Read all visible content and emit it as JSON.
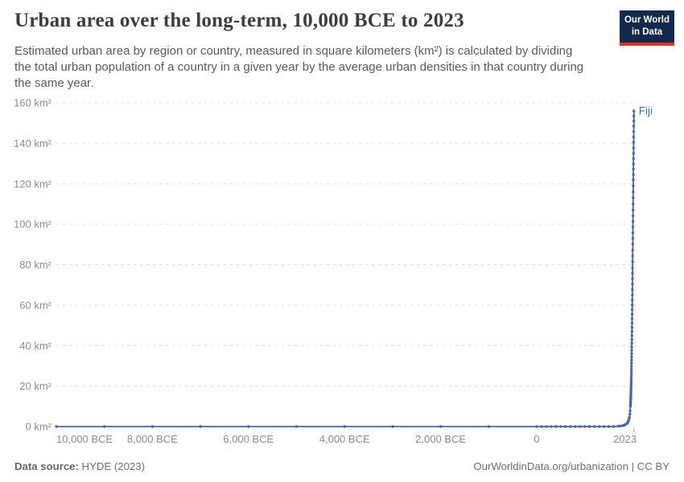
{
  "header": {
    "title": "Urban area over the long-term, 10,000 BCE to 2023",
    "subtitle": "Estimated urban area by region or country, measured in square kilometers (km²) is calculated by dividing the total urban population of a country in a given year by the average urban densities in that country during the same year.",
    "logo": {
      "line1": "Our World",
      "line2": "in Data"
    }
  },
  "footer": {
    "source_label": "Data source:",
    "source_value": " HYDE (2023)",
    "credit": "OurWorldinData.org/urbanization | CC BY"
  },
  "colors": {
    "series": "#4a66a2",
    "grid": "#dcdcdc",
    "tick_text": "#8c8c8c",
    "axis_tick": "#a0a0a0",
    "logo_bg": "#12294b",
    "logo_bar": "#dc352c"
  },
  "chart_data": {
    "type": "line",
    "title": "Urban area over the long-term, 10,000 BCE to 2023",
    "xlabel": "",
    "ylabel": "",
    "xlim": [
      -10000,
      2023
    ],
    "ylim": [
      0,
      160
    ],
    "grid": "dashed-horizontal",
    "legend_position": "end-of-line-label",
    "x_axis": {
      "ticks": [
        {
          "year": -10000,
          "label": "10,000 BCE"
        },
        {
          "year": -8000,
          "label": "8,000 BCE"
        },
        {
          "year": -6000,
          "label": "6,000 BCE"
        },
        {
          "year": -4000,
          "label": "4,000 BCE"
        },
        {
          "year": -2000,
          "label": "2,000 BCE"
        },
        {
          "year": 0,
          "label": "0"
        },
        {
          "year": 2023,
          "label": "2023"
        }
      ]
    },
    "y_axis": {
      "ticks": [
        {
          "value": 0,
          "label": "0 km²"
        },
        {
          "value": 20,
          "label": "20 km²"
        },
        {
          "value": 40,
          "label": "40 km²"
        },
        {
          "value": 60,
          "label": "60 km²"
        },
        {
          "value": 80,
          "label": "80 km²"
        },
        {
          "value": 100,
          "label": "100 km²"
        },
        {
          "value": 120,
          "label": "120 km²"
        },
        {
          "value": 140,
          "label": "140 km²"
        },
        {
          "value": 160,
          "label": "160 km²"
        }
      ]
    },
    "series": [
      {
        "name": "Fiji",
        "color": "#4a66a2",
        "points": [
          [
            -10000,
            0
          ],
          [
            -9000,
            0
          ],
          [
            -8000,
            0
          ],
          [
            -7000,
            0
          ],
          [
            -6000,
            0
          ],
          [
            -5000,
            0
          ],
          [
            -4000,
            0
          ],
          [
            -3000,
            0
          ],
          [
            -2000,
            0
          ],
          [
            -1000,
            0
          ],
          [
            0,
            0
          ],
          [
            100,
            0
          ],
          [
            200,
            0
          ],
          [
            300,
            0
          ],
          [
            400,
            0
          ],
          [
            500,
            0
          ],
          [
            600,
            0
          ],
          [
            700,
            0
          ],
          [
            800,
            0
          ],
          [
            900,
            0
          ],
          [
            1000,
            0
          ],
          [
            1100,
            0
          ],
          [
            1200,
            0
          ],
          [
            1300,
            0
          ],
          [
            1400,
            0
          ],
          [
            1500,
            0
          ],
          [
            1600,
            0
          ],
          [
            1700,
            0.2
          ],
          [
            1750,
            0.3
          ],
          [
            1800,
            0.5
          ],
          [
            1820,
            0.7
          ],
          [
            1840,
            0.9
          ],
          [
            1860,
            1.2
          ],
          [
            1880,
            1.6
          ],
          [
            1890,
            1.9
          ],
          [
            1900,
            2.3
          ],
          [
            1910,
            2.9
          ],
          [
            1920,
            3.6
          ],
          [
            1930,
            4.6
          ],
          [
            1940,
            6.2
          ],
          [
            1945,
            7.8
          ],
          [
            1950,
            10.0
          ],
          [
            1951,
            10.5
          ],
          [
            1952,
            11.0
          ],
          [
            1953,
            11.6
          ],
          [
            1954,
            12.2
          ],
          [
            1955,
            12.8
          ],
          [
            1956,
            13.5
          ],
          [
            1957,
            14.2
          ],
          [
            1958,
            14.9
          ],
          [
            1959,
            15.6
          ],
          [
            1960,
            16.4
          ],
          [
            1961,
            17.2
          ],
          [
            1962,
            18.1
          ],
          [
            1963,
            19.0
          ],
          [
            1964,
            20.0
          ],
          [
            1965,
            21.0
          ],
          [
            1966,
            22.1
          ],
          [
            1967,
            23.2
          ],
          [
            1968,
            24.4
          ],
          [
            1969,
            25.7
          ],
          [
            1970,
            27.0
          ],
          [
            1971,
            28.4
          ],
          [
            1972,
            29.8
          ],
          [
            1973,
            31.3
          ],
          [
            1974,
            32.8
          ],
          [
            1975,
            34.4
          ],
          [
            1976,
            36.0
          ],
          [
            1977,
            37.7
          ],
          [
            1978,
            39.4
          ],
          [
            1979,
            41.2
          ],
          [
            1980,
            43.0
          ],
          [
            1981,
            45.0
          ],
          [
            1982,
            47.0
          ],
          [
            1983,
            49.0
          ],
          [
            1984,
            51.1
          ],
          [
            1985,
            53.3
          ],
          [
            1986,
            55.5
          ],
          [
            1987,
            57.8
          ],
          [
            1988,
            60.1
          ],
          [
            1989,
            62.5
          ],
          [
            1990,
            65.0
          ],
          [
            1991,
            67.7
          ],
          [
            1992,
            70.4
          ],
          [
            1993,
            73.1
          ],
          [
            1994,
            75.8
          ],
          [
            1995,
            78.5
          ],
          [
            1996,
            81.4
          ],
          [
            1997,
            84.3
          ],
          [
            1998,
            87.2
          ],
          [
            1999,
            90.1
          ],
          [
            2000,
            93.0
          ],
          [
            2001,
            95.8
          ],
          [
            2002,
            98.6
          ],
          [
            2003,
            101.4
          ],
          [
            2004,
            104.2
          ],
          [
            2005,
            107.0
          ],
          [
            2006,
            110.0
          ],
          [
            2007,
            113.0
          ],
          [
            2008,
            116.0
          ],
          [
            2009,
            119.0
          ],
          [
            2010,
            122.0
          ],
          [
            2011,
            124.6
          ],
          [
            2012,
            127.2
          ],
          [
            2013,
            129.8
          ],
          [
            2014,
            132.4
          ],
          [
            2015,
            135.0
          ],
          [
            2016,
            137.7
          ],
          [
            2017,
            140.4
          ],
          [
            2018,
            143.1
          ],
          [
            2019,
            145.8
          ],
          [
            2020,
            148.5
          ],
          [
            2021,
            151.0
          ],
          [
            2022,
            153.5
          ],
          [
            2023,
            156.0
          ]
        ]
      }
    ]
  }
}
